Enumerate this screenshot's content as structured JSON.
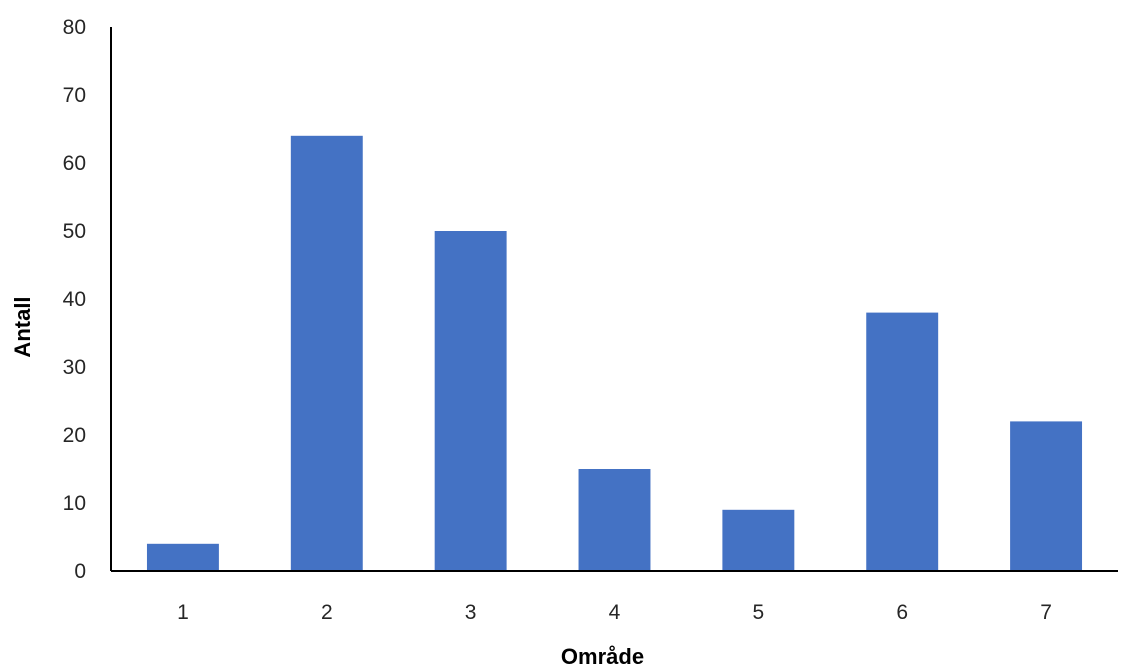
{
  "chart_data": {
    "type": "bar",
    "categories": [
      "1",
      "2",
      "3",
      "4",
      "5",
      "6",
      "7"
    ],
    "values": [
      4,
      64,
      50,
      15,
      9,
      38,
      22
    ],
    "title": "",
    "xlabel": "Område",
    "ylabel": "Antall",
    "ylim": [
      0,
      80
    ],
    "yticks": [
      0,
      10,
      20,
      30,
      40,
      50,
      60,
      70,
      80
    ],
    "grid": false,
    "legend": "none",
    "bar_color": "#4472C4",
    "axis_color": "#000000"
  }
}
